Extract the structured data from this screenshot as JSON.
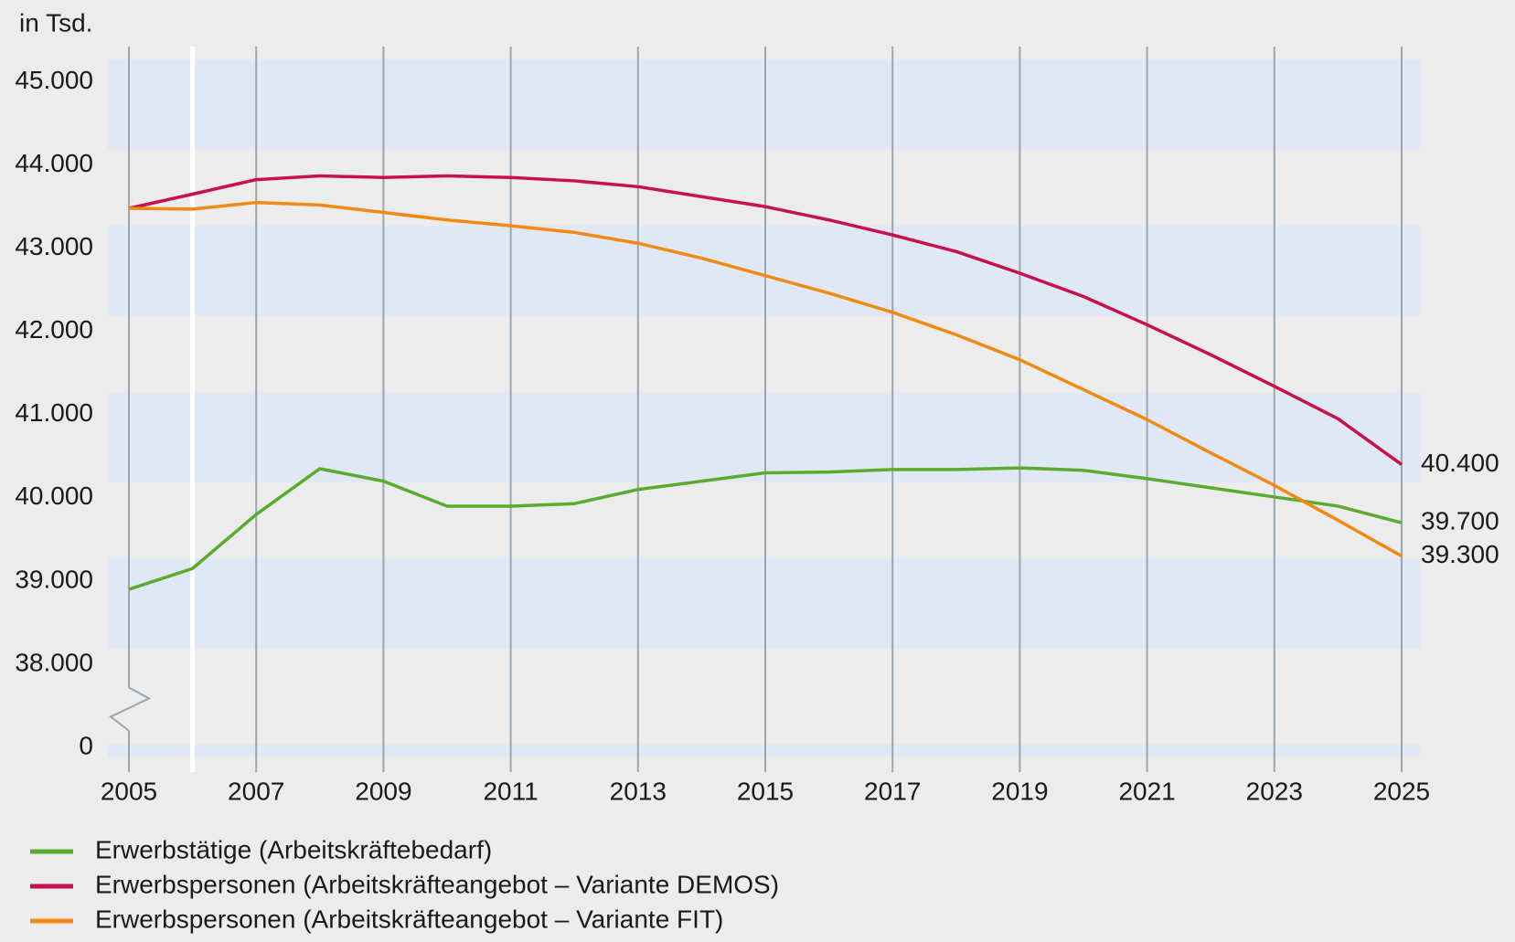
{
  "chart_data": {
    "type": "line",
    "y_label": "in Tsd.",
    "x": [
      2005,
      2006,
      2007,
      2008,
      2009,
      2010,
      2011,
      2012,
      2013,
      2014,
      2015,
      2016,
      2017,
      2018,
      2019,
      2020,
      2021,
      2022,
      2023,
      2024,
      2025
    ],
    "series": [
      {
        "name": "Erwerbstätige (Arbeitskräftebedarf)",
        "color": "#5aac2e",
        "values": [
          38900,
          39150,
          39800,
          40350,
          40200,
          39900,
          39900,
          39930,
          40100,
          40200,
          40300,
          40310,
          40340,
          40340,
          40360,
          40330,
          40230,
          40120,
          40010,
          39900,
          39700
        ],
        "value_labels": [
          null,
          null,
          null,
          null,
          null,
          null,
          null,
          null,
          null,
          null,
          null,
          null,
          null,
          null,
          null,
          null,
          null,
          null,
          null,
          null,
          "39.700"
        ]
      },
      {
        "name": "Erwerbspersonen (Arbeitskräfteangebot – Variante DEMOS)",
        "color": "#c8104b",
        "values": [
          43480,
          43650,
          43825,
          43870,
          43850,
          43870,
          43850,
          43810,
          43740,
          43620,
          43500,
          43340,
          43160,
          42960,
          42700,
          42420,
          42080,
          41720,
          41340,
          40950,
          40400
        ],
        "value_labels": [
          null,
          null,
          null,
          null,
          null,
          null,
          null,
          null,
          null,
          null,
          null,
          null,
          null,
          null,
          null,
          null,
          null,
          null,
          null,
          null,
          "40.400"
        ]
      },
      {
        "name": "Erwerbspersonen (Arbeitskräfteangebot – Variante FIT)",
        "color": "#f08a12",
        "values": [
          43480,
          43470,
          43550,
          43520,
          43430,
          43340,
          43270,
          43190,
          43060,
          42880,
          42670,
          42460,
          42230,
          41960,
          41660,
          41300,
          40940,
          40540,
          40150,
          39730,
          39300
        ],
        "value_labels": [
          null,
          null,
          null,
          null,
          null,
          null,
          null,
          null,
          null,
          null,
          null,
          null,
          null,
          null,
          null,
          null,
          null,
          null,
          null,
          null,
          "39.300"
        ]
      }
    ],
    "xlim": [
      2005,
      2025
    ],
    "xticks": [
      2005,
      2007,
      2009,
      2011,
      2013,
      2015,
      2017,
      2019,
      2021,
      2023,
      2025
    ],
    "ylim": [
      0,
      45270
    ],
    "yticks": [
      0,
      {
        "value": 38000,
        "label": "38.000"
      },
      {
        "value": 39000,
        "label": "39.000"
      },
      {
        "value": 40000,
        "label": "40.000"
      },
      {
        "value": 41000,
        "label": "41.000"
      },
      {
        "value": 42000,
        "label": "42.000"
      },
      {
        "value": 43000,
        "label": "43.000"
      },
      {
        "value": 44000,
        "label": "44.000"
      },
      {
        "value": 45000,
        "label": "45.000"
      }
    ],
    "axis_break": {
      "from": 0,
      "to": 38000
    },
    "marker_x": 2006,
    "grid": true,
    "legend": "bottom-left"
  }
}
